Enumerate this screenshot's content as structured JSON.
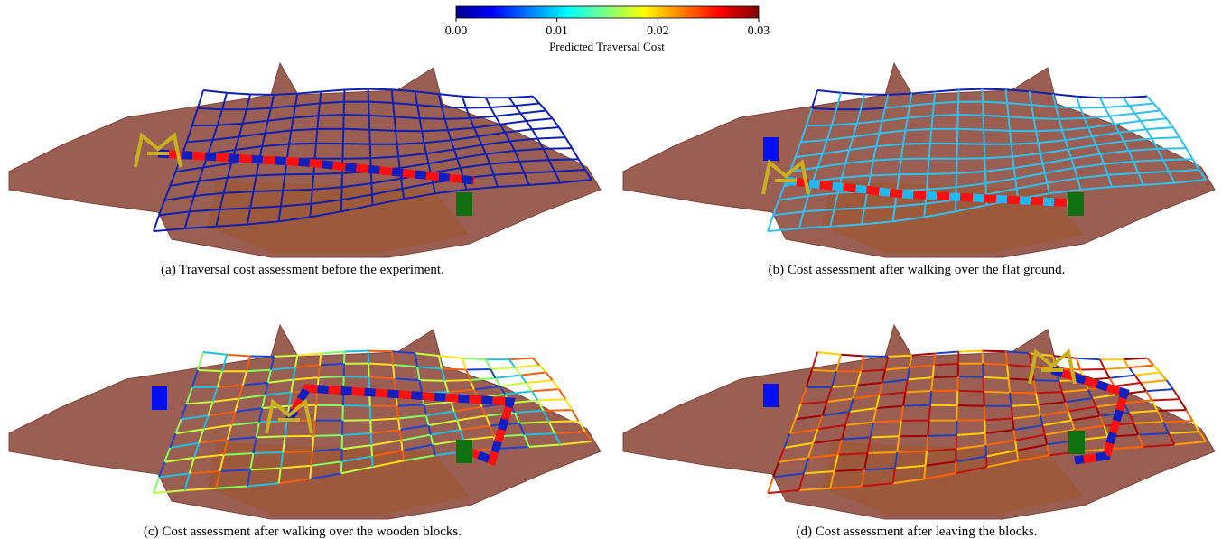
{
  "colorbar": {
    "label": "Predicted Traversal Cost",
    "lim": [
      0,
      0.03
    ],
    "ticks": [
      {
        "value": 0,
        "label": "0.00"
      },
      0.01,
      0.02,
      0.03
    ]
  },
  "panels": [
    {
      "caption": "(a) Traversal cost assessment before the experiment."
    },
    {
      "caption": "(b) Cost assessment after walking over the flat ground."
    },
    {
      "caption": "(c) Cost assessment after walking over the wooden blocks."
    },
    {
      "caption": "(d) Cost assessment after leaving the blocks."
    }
  ]
}
